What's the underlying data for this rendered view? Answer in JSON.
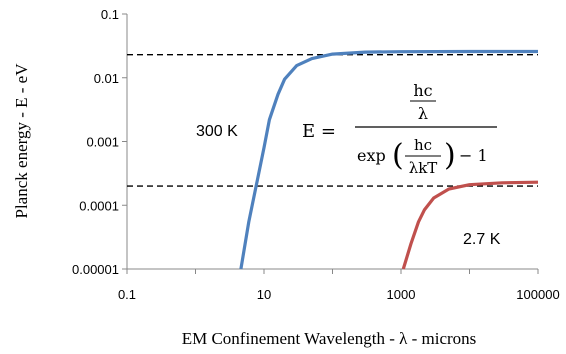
{
  "chart_data": {
    "type": "line",
    "xlabel": "EM Confinement Wavelength - λ - microns",
    "ylabel": "Planck energy - E - eV",
    "xscale": "log",
    "yscale": "log",
    "xlim": [
      0.1,
      100000
    ],
    "ylim": [
      1e-05,
      0.1
    ],
    "x_ticks": [
      "0.1",
      "10",
      "1000",
      "100000"
    ],
    "y_ticks": [
      "0.1",
      "0.01",
      "0.001",
      "0.0001",
      "0.00001"
    ],
    "grid": false,
    "series": [
      {
        "name": "300 K",
        "color": "#4f81bd",
        "x": [
          4.6,
          6,
          8,
          10,
          12,
          16,
          20,
          30,
          50,
          100,
          300,
          1000,
          10000,
          100000
        ],
        "y": [
          1e-05,
          5.5e-05,
          0.00025,
          0.0008,
          0.0022,
          0.0055,
          0.0095,
          0.0155,
          0.02,
          0.0235,
          0.0253,
          0.0256,
          0.0258,
          0.0258
        ]
      },
      {
        "name": "2.7 K",
        "color": "#c0504d",
        "x": [
          1080,
          1400,
          1800,
          2200,
          3000,
          5000,
          10000,
          30000,
          100000
        ],
        "y": [
          1e-05,
          2.5e-05,
          5.5e-05,
          8.5e-05,
          0.00013,
          0.00018,
          0.00021,
          0.000225,
          0.00023
        ]
      }
    ],
    "reference_lines": [
      {
        "y": 0.023,
        "x_from": 0.1,
        "x_to": 100000,
        "style": "dashed",
        "color": "#000000"
      },
      {
        "y": 0.0002,
        "x_from": 0.1,
        "x_to": 100000,
        "style": "dashed",
        "color": "#000000"
      }
    ],
    "annotations": {
      "label_300k": "300 K",
      "label_27k": "2.7 K",
      "formula": {
        "lhs": "E =",
        "num_top": "hc",
        "num_bottom": "λ",
        "exp": "exp",
        "inner_top": "hc",
        "inner_bottom": "λkT",
        "minus_one": "− 1"
      }
    }
  }
}
